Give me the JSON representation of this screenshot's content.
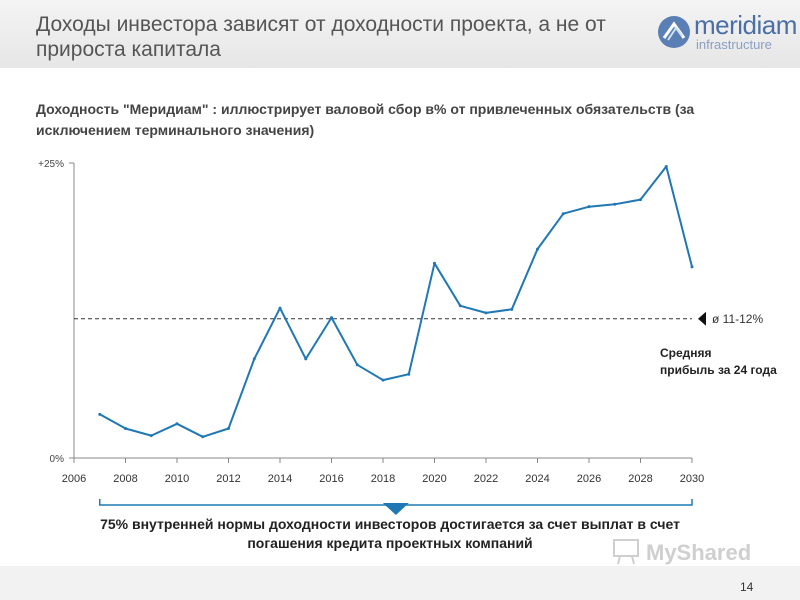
{
  "header": {
    "title": "Доходы инвестора зависят от доходности проекта, а не от прироста капитала",
    "logo": {
      "name": "meridiam",
      "sub": "infrastructure"
    }
  },
  "subtitle": "Доходность \"Меридиам\" : иллюстрирует валовой сбор в% от привлеченных обязательств (за исключением терминального значения)",
  "chart_data": {
    "type": "line",
    "x": [
      2007,
      2008,
      2009,
      2010,
      2011,
      2012,
      2013,
      2014,
      2015,
      2016,
      2017,
      2018,
      2019,
      2020,
      2021,
      2022,
      2023,
      2024,
      2025,
      2026,
      2027,
      2028,
      2029,
      2030
    ],
    "series": [
      {
        "values": [
          3.7,
          2.5,
          1.9,
          2.9,
          1.8,
          2.5,
          8.4,
          12.7,
          8.4,
          11.9,
          7.9,
          6.6,
          7.1,
          16.5,
          12.9,
          12.3,
          12.6,
          17.7,
          20.7,
          21.3,
          21.5,
          21.9,
          24.7,
          16.2
        ]
      }
    ],
    "xlim": [
      2006,
      2030
    ],
    "ylim": [
      0,
      25
    ],
    "x_ticks": [
      "2006",
      "2008",
      "2010",
      "2012",
      "2014",
      "2016",
      "2018",
      "2020",
      "2022",
      "2024",
      "2026",
      "2028",
      "2030"
    ],
    "y_ticks": [
      "0%",
      "+25%"
    ],
    "reference_line": {
      "value": 11.8,
      "label": "ø 11-12%",
      "note": "Средняя прибыль за 24 года"
    },
    "grid": false,
    "line_color": "#1f78b4"
  },
  "footnote": "75% внутренней нормы доходности инвесторов достигается за счет выплат в счет погашения кредита проектных компаний",
  "watermark": "MyShared",
  "page_number": "14"
}
